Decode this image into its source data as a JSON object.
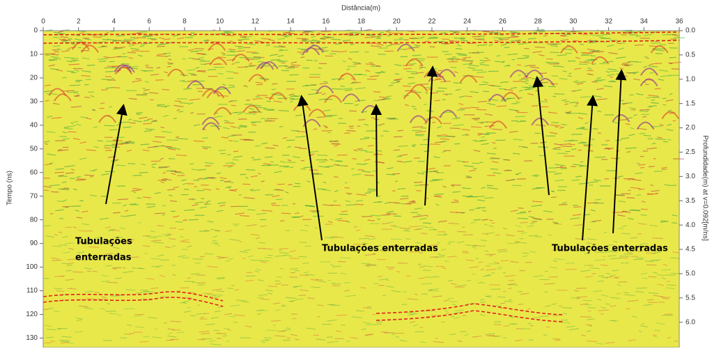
{
  "chart_data": {
    "type": "radargram",
    "x_label": "Distância(m)",
    "y_label": "Tempo (ns)",
    "y2_label": "Profundidade(m) at v=0.092[m/ns]",
    "xlim": [
      0,
      36
    ],
    "xticks": [
      0,
      2,
      4,
      6,
      8,
      10,
      12,
      14,
      16,
      18,
      20,
      22,
      24,
      26,
      28,
      30,
      32,
      34,
      36
    ],
    "ylim": [
      0,
      134
    ],
    "yticks": [
      0,
      10,
      20,
      30,
      40,
      50,
      60,
      70,
      80,
      90,
      100,
      110,
      120,
      130
    ],
    "y2lim": [
      0,
      6.52
    ],
    "y2ticks": [
      {
        "value": 0,
        "label": "0.0"
      },
      0.5,
      {
        "value": 1,
        "label": "1.0"
      },
      1.5,
      {
        "value": 2,
        "label": "2.0"
      },
      2.5,
      {
        "value": 3,
        "label": "3.0"
      },
      3.5,
      {
        "value": 4,
        "label": "4.0"
      },
      4.5,
      {
        "value": 5,
        "label": "5.0"
      },
      5.5,
      {
        "value": 6,
        "label": "6.0"
      }
    ],
    "annotations": [
      {
        "lines": [
          "Tubulações",
          "enterradas"
        ]
      },
      {
        "lines": [
          "Tubulações enterradas"
        ]
      },
      {
        "lines": [
          "Tubulações enterradas"
        ]
      }
    ]
  }
}
